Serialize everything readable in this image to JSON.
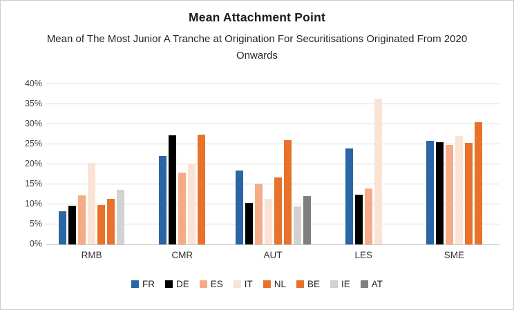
{
  "chart": {
    "title": "Mean Attachment Point",
    "subtitle": "Mean of The Most Junior A Tranche at Origination For Securitisations Originated From 2020 Onwards"
  },
  "chart_data": {
    "type": "bar",
    "title": "Mean Attachment Point",
    "subtitle": "Mean of The Most Junior A Tranche at Origination For Securitisations Originated From 2020 Onwards",
    "categories": [
      "RMB",
      "CMR",
      "AUT",
      "LES",
      "SME"
    ],
    "series": [
      {
        "name": "FR",
        "color": "#2A65A5",
        "values": [
          8.3,
          22.1,
          18.4,
          23.9,
          25.8
        ]
      },
      {
        "name": "DE",
        "color": "#000000",
        "values": [
          9.7,
          27.2,
          10.3,
          12.4,
          25.5
        ]
      },
      {
        "name": "ES",
        "color": "#F4AC88",
        "values": [
          12.2,
          18.0,
          15.2,
          13.9,
          24.8
        ]
      },
      {
        "name": "IT",
        "color": "#FBE3D4",
        "values": [
          20.3,
          20.2,
          11.4,
          36.3,
          27.1
        ]
      },
      {
        "name": "NL",
        "color": "#E8722B",
        "values": [
          9.9,
          27.5,
          16.8,
          null,
          25.3
        ]
      },
      {
        "name": "BE",
        "color": "#E8722B",
        "values": [
          11.4,
          null,
          26.0,
          null,
          30.5
        ]
      },
      {
        "name": "IE",
        "color": "#D2D2D2",
        "values": [
          13.7,
          null,
          9.4,
          null,
          null
        ]
      },
      {
        "name": "AT",
        "color": "#7F7F7F",
        "values": [
          null,
          null,
          12.1,
          null,
          null
        ]
      }
    ],
    "xlabel": "",
    "ylabel": "",
    "ylim": [
      0,
      40
    ],
    "ytick_step": 5,
    "ytick_suffix": "%",
    "grid": "horizontal",
    "legend_position": "bottom",
    "legend": [
      "FR",
      "DE",
      "ES",
      "IT",
      "NL",
      "BE",
      "IE",
      "AT"
    ]
  }
}
